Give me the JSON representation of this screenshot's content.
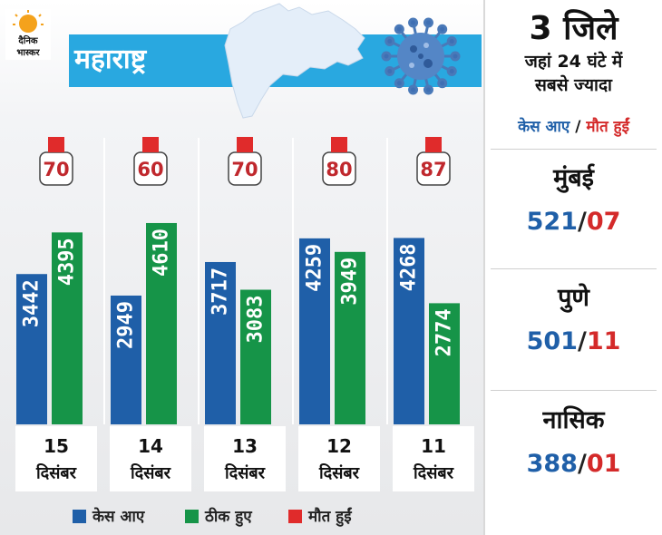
{
  "brand": {
    "line1": "दैनिक",
    "line2": "भास्कर"
  },
  "header": {
    "title": "महाराष्ट्र"
  },
  "chart_data": {
    "type": "bar",
    "categories": [
      {
        "day": "15",
        "month": "दिसंबर"
      },
      {
        "day": "14",
        "month": "दिसंबर"
      },
      {
        "day": "13",
        "month": "दिसंबर"
      },
      {
        "day": "12",
        "month": "दिसंबर"
      },
      {
        "day": "11",
        "month": "दिसंबर"
      }
    ],
    "series": [
      {
        "name": "केस आए",
        "values": [
          3442,
          2949,
          3717,
          4259,
          4268
        ],
        "color": "#1f5fa8"
      },
      {
        "name": "ठीक हुए",
        "values": [
          4395,
          4610,
          3083,
          3949,
          2774
        ],
        "color": "#169448"
      },
      {
        "name": "मौत हुईं",
        "values": [
          70,
          60,
          70,
          80,
          87
        ],
        "color": "#e02b2b"
      }
    ],
    "ylim": [
      0,
      4900
    ],
    "legend_position": "bottom"
  },
  "sidebar": {
    "heading_big": "3 जिले",
    "heading_line2": "जहां 24 घंटे में",
    "heading_line3": "सबसे ज्यादा",
    "cases_label": "केस आए",
    "slash": "/",
    "deaths_label": "मौत हुईं",
    "cases_color": "#1f5fa8",
    "deaths_color": "#d42a2a",
    "districts": [
      {
        "name": "मुंबई",
        "cases": "521",
        "deaths": "07"
      },
      {
        "name": "पुणे",
        "cases": "501",
        "deaths": "11"
      },
      {
        "name": "नासिक",
        "cases": "388",
        "deaths": "01"
      }
    ]
  }
}
